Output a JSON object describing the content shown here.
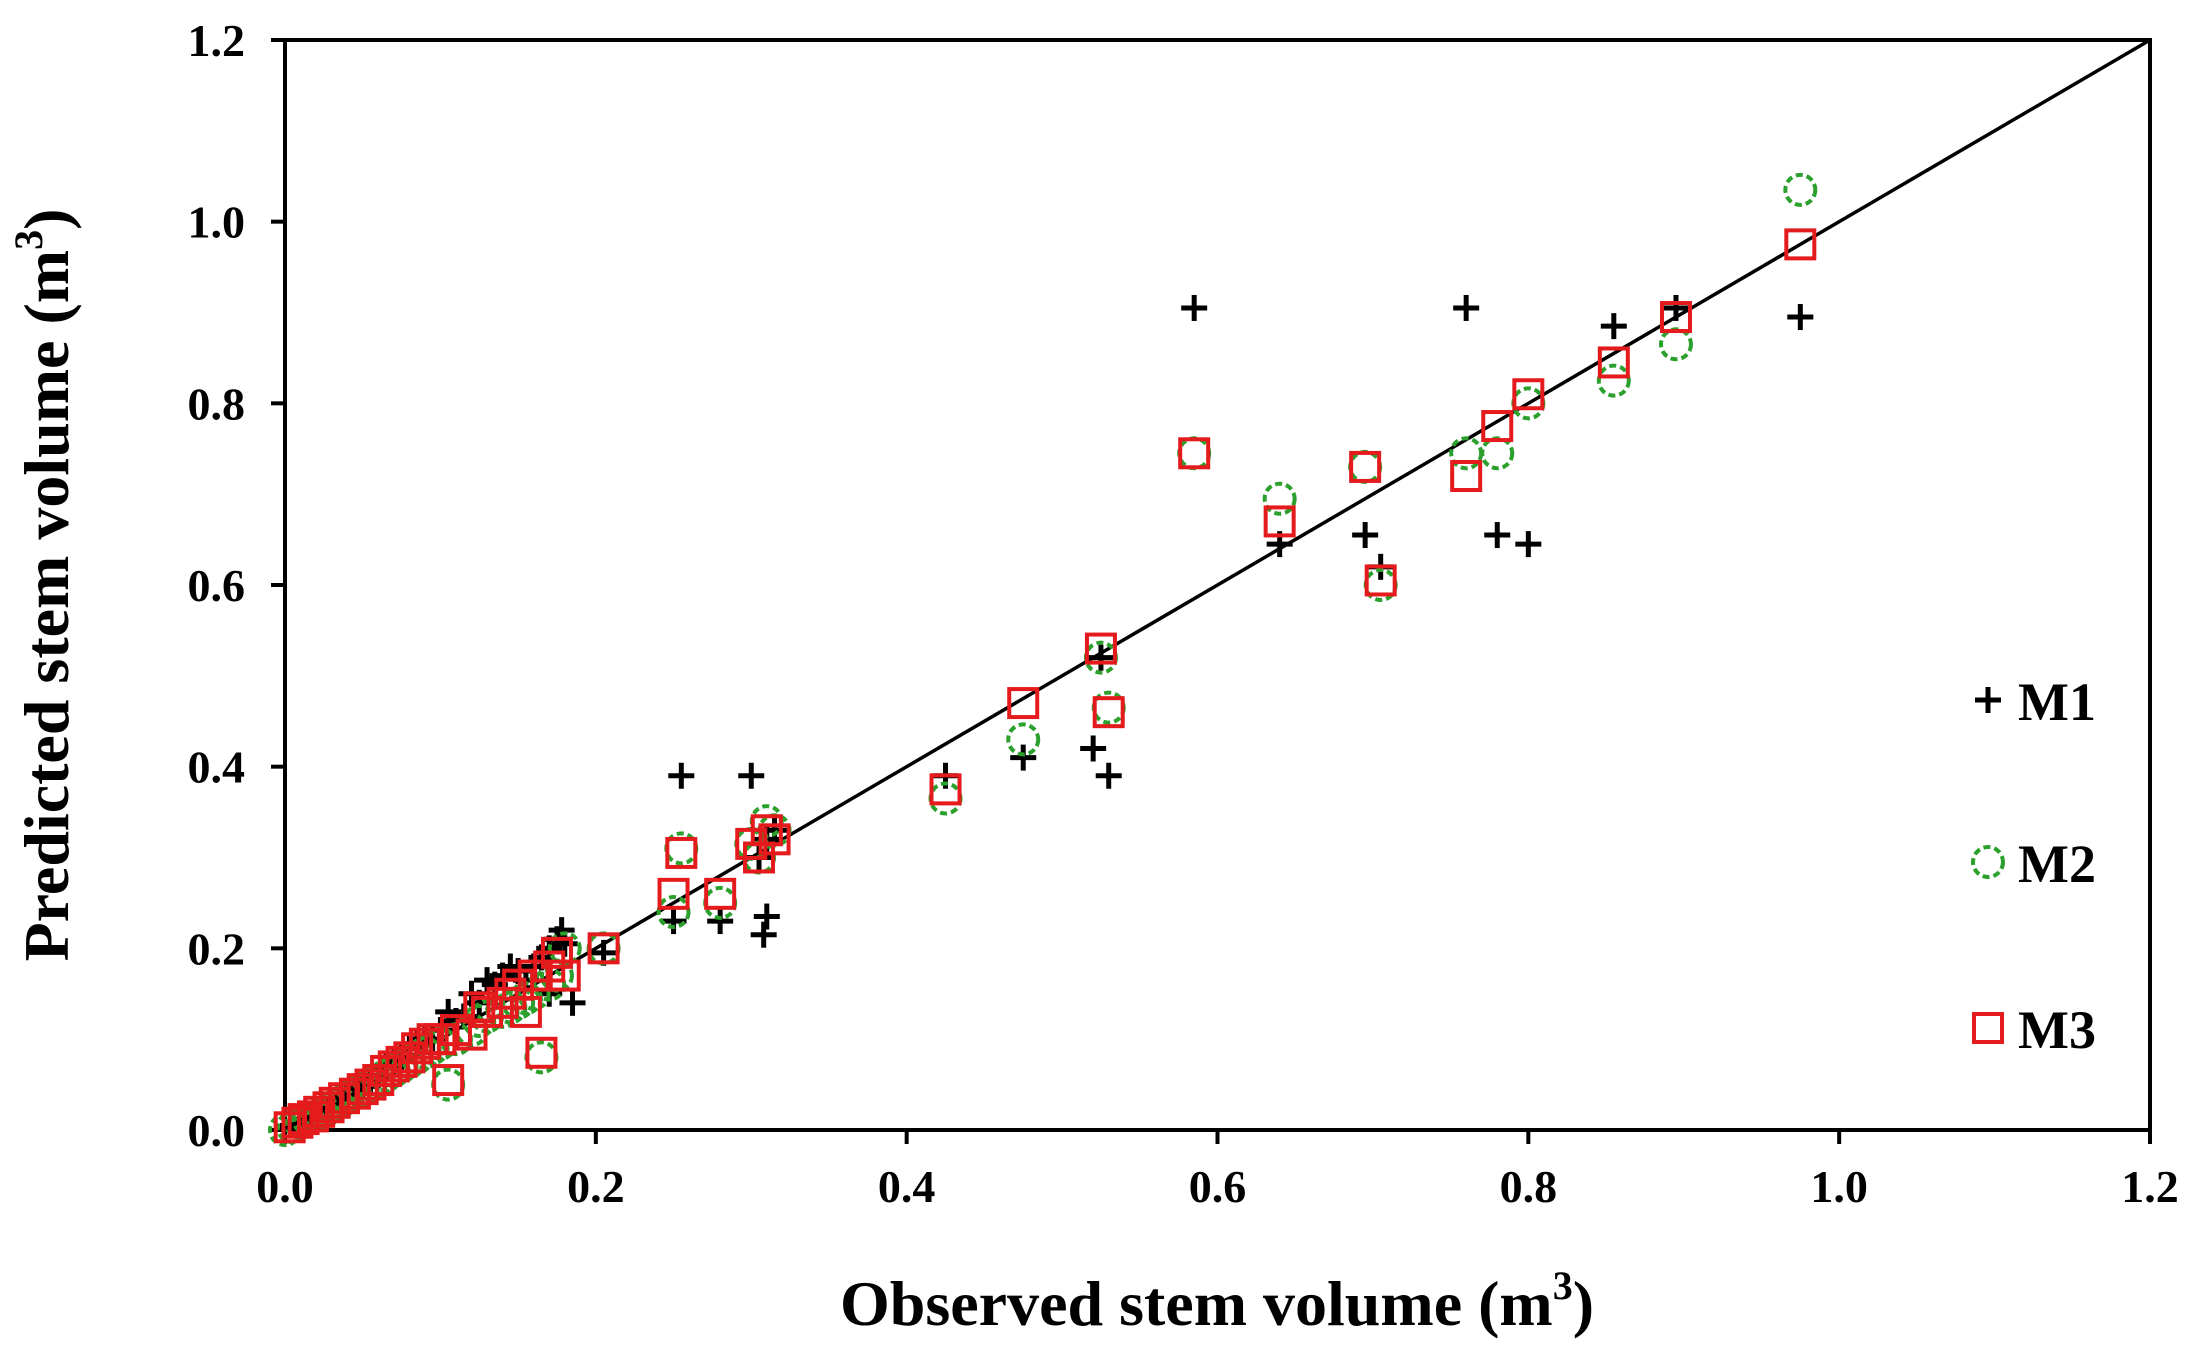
{
  "chart_data": {
    "type": "scatter",
    "title": "",
    "xlabel": "Observed stem volume  (m",
    "xlabel_sup": "3",
    "xlabel_close": ")",
    "ylabel": "Predicted stem volume (m",
    "ylabel_sup": "3",
    "ylabel_close": ")",
    "xlim": [
      0.0,
      1.2
    ],
    "ylim": [
      0.0,
      1.2
    ],
    "x_ticks": [
      0.0,
      0.2,
      0.4,
      0.6,
      0.8,
      1.0,
      1.2
    ],
    "y_ticks": [
      0.0,
      0.2,
      0.4,
      0.6,
      0.8,
      1.0,
      1.2
    ],
    "x_tick_labels": [
      "0.0",
      "0.2",
      "0.4",
      "0.6",
      "0.8",
      "1.0",
      "1.2"
    ],
    "y_tick_labels": [
      "0.0",
      "0.2",
      "0.4",
      "0.6",
      "0.8",
      "1.0",
      "1.2"
    ],
    "grid": false,
    "legend_position": "right",
    "reference_line": {
      "name": "1:1 line",
      "from": [
        0.0,
        0.0
      ],
      "to": [
        1.2,
        1.2
      ],
      "color": "#000000"
    },
    "series": [
      {
        "name": "M1",
        "marker": "plus",
        "color": "#000000",
        "points": [
          [
            0.005,
            0.005
          ],
          [
            0.01,
            0.01
          ],
          [
            0.015,
            0.012
          ],
          [
            0.02,
            0.018
          ],
          [
            0.025,
            0.022
          ],
          [
            0.03,
            0.028
          ],
          [
            0.035,
            0.032
          ],
          [
            0.04,
            0.038
          ],
          [
            0.045,
            0.045
          ],
          [
            0.05,
            0.048
          ],
          [
            0.055,
            0.055
          ],
          [
            0.06,
            0.06
          ],
          [
            0.065,
            0.07
          ],
          [
            0.07,
            0.075
          ],
          [
            0.075,
            0.08
          ],
          [
            0.08,
            0.09
          ],
          [
            0.085,
            0.095
          ],
          [
            0.09,
            0.1
          ],
          [
            0.095,
            0.1
          ],
          [
            0.1,
            0.11
          ],
          [
            0.105,
            0.13
          ],
          [
            0.11,
            0.12
          ],
          [
            0.115,
            0.125
          ],
          [
            0.12,
            0.15
          ],
          [
            0.125,
            0.14
          ],
          [
            0.13,
            0.165
          ],
          [
            0.135,
            0.16
          ],
          [
            0.14,
            0.17
          ],
          [
            0.145,
            0.18
          ],
          [
            0.15,
            0.175
          ],
          [
            0.155,
            0.165
          ],
          [
            0.16,
            0.18
          ],
          [
            0.165,
            0.19
          ],
          [
            0.17,
            0.2
          ],
          [
            0.175,
            0.21
          ],
          [
            0.178,
            0.22
          ],
          [
            0.18,
            0.205
          ],
          [
            0.185,
            0.14
          ],
          [
            0.17,
            0.15
          ],
          [
            0.205,
            0.195
          ],
          [
            0.25,
            0.23
          ],
          [
            0.255,
            0.39
          ],
          [
            0.28,
            0.23
          ],
          [
            0.3,
            0.39
          ],
          [
            0.305,
            0.3
          ],
          [
            0.308,
            0.215
          ],
          [
            0.31,
            0.235
          ],
          [
            0.31,
            0.32
          ],
          [
            0.315,
            0.33
          ],
          [
            0.425,
            0.39
          ],
          [
            0.475,
            0.41
          ],
          [
            0.52,
            0.42
          ],
          [
            0.525,
            0.52
          ],
          [
            0.53,
            0.39
          ],
          [
            0.585,
            0.905
          ],
          [
            0.64,
            0.645
          ],
          [
            0.695,
            0.655
          ],
          [
            0.705,
            0.62
          ],
          [
            0.76,
            0.905
          ],
          [
            0.78,
            0.655
          ],
          [
            0.8,
            0.645
          ],
          [
            0.855,
            0.885
          ],
          [
            0.895,
            0.905
          ],
          [
            0.975,
            0.895
          ]
        ]
      },
      {
        "name": "M2",
        "marker": "dashed-circle",
        "color": "#2ca02c",
        "points": [
          [
            0.0,
            0.0
          ],
          [
            0.005,
            0.003
          ],
          [
            0.01,
            0.008
          ],
          [
            0.015,
            0.012
          ],
          [
            0.02,
            0.018
          ],
          [
            0.025,
            0.02
          ],
          [
            0.03,
            0.025
          ],
          [
            0.035,
            0.03
          ],
          [
            0.04,
            0.035
          ],
          [
            0.045,
            0.04
          ],
          [
            0.05,
            0.045
          ],
          [
            0.055,
            0.05
          ],
          [
            0.06,
            0.055
          ],
          [
            0.065,
            0.06
          ],
          [
            0.07,
            0.065
          ],
          [
            0.075,
            0.07
          ],
          [
            0.08,
            0.075
          ],
          [
            0.085,
            0.08
          ],
          [
            0.09,
            0.085
          ],
          [
            0.095,
            0.09
          ],
          [
            0.1,
            0.095
          ],
          [
            0.105,
            0.05
          ],
          [
            0.11,
            0.1
          ],
          [
            0.12,
            0.11
          ],
          [
            0.125,
            0.12
          ],
          [
            0.13,
            0.125
          ],
          [
            0.14,
            0.13
          ],
          [
            0.145,
            0.135
          ],
          [
            0.15,
            0.14
          ],
          [
            0.155,
            0.145
          ],
          [
            0.16,
            0.15
          ],
          [
            0.165,
            0.08
          ],
          [
            0.17,
            0.16
          ],
          [
            0.175,
            0.17
          ],
          [
            0.18,
            0.2
          ],
          [
            0.205,
            0.2
          ],
          [
            0.25,
            0.24
          ],
          [
            0.255,
            0.31
          ],
          [
            0.28,
            0.25
          ],
          [
            0.3,
            0.315
          ],
          [
            0.305,
            0.3
          ],
          [
            0.31,
            0.34
          ],
          [
            0.315,
            0.33
          ],
          [
            0.425,
            0.365
          ],
          [
            0.475,
            0.43
          ],
          [
            0.525,
            0.52
          ],
          [
            0.53,
            0.465
          ],
          [
            0.585,
            0.745
          ],
          [
            0.64,
            0.695
          ],
          [
            0.695,
            0.73
          ],
          [
            0.705,
            0.6
          ],
          [
            0.76,
            0.745
          ],
          [
            0.78,
            0.745
          ],
          [
            0.8,
            0.8
          ],
          [
            0.855,
            0.825
          ],
          [
            0.895,
            0.865
          ],
          [
            0.975,
            1.035
          ]
        ]
      },
      {
        "name": "M3",
        "marker": "square",
        "color": "#e41a1c",
        "points": [
          [
            0.003,
            0.003
          ],
          [
            0.008,
            0.008
          ],
          [
            0.012,
            0.012
          ],
          [
            0.018,
            0.015
          ],
          [
            0.022,
            0.02
          ],
          [
            0.028,
            0.025
          ],
          [
            0.032,
            0.03
          ],
          [
            0.038,
            0.035
          ],
          [
            0.045,
            0.04
          ],
          [
            0.05,
            0.045
          ],
          [
            0.055,
            0.05
          ],
          [
            0.06,
            0.055
          ],
          [
            0.065,
            0.065
          ],
          [
            0.07,
            0.07
          ],
          [
            0.075,
            0.075
          ],
          [
            0.08,
            0.08
          ],
          [
            0.085,
            0.09
          ],
          [
            0.09,
            0.095
          ],
          [
            0.095,
            0.1
          ],
          [
            0.1,
            0.1
          ],
          [
            0.105,
            0.055
          ],
          [
            0.11,
            0.11
          ],
          [
            0.12,
            0.105
          ],
          [
            0.125,
            0.135
          ],
          [
            0.13,
            0.13
          ],
          [
            0.14,
            0.14
          ],
          [
            0.145,
            0.15
          ],
          [
            0.15,
            0.16
          ],
          [
            0.155,
            0.13
          ],
          [
            0.16,
            0.17
          ],
          [
            0.165,
            0.085
          ],
          [
            0.17,
            0.18
          ],
          [
            0.175,
            0.195
          ],
          [
            0.18,
            0.17
          ],
          [
            0.205,
            0.2
          ],
          [
            0.25,
            0.26
          ],
          [
            0.255,
            0.305
          ],
          [
            0.28,
            0.26
          ],
          [
            0.3,
            0.315
          ],
          [
            0.305,
            0.3
          ],
          [
            0.31,
            0.33
          ],
          [
            0.315,
            0.32
          ],
          [
            0.425,
            0.375
          ],
          [
            0.475,
            0.47
          ],
          [
            0.525,
            0.53
          ],
          [
            0.53,
            0.46
          ],
          [
            0.585,
            0.745
          ],
          [
            0.64,
            0.67
          ],
          [
            0.695,
            0.73
          ],
          [
            0.705,
            0.605
          ],
          [
            0.76,
            0.72
          ],
          [
            0.78,
            0.775
          ],
          [
            0.8,
            0.81
          ],
          [
            0.855,
            0.845
          ],
          [
            0.895,
            0.895
          ],
          [
            0.975,
            0.975
          ]
        ]
      }
    ]
  }
}
